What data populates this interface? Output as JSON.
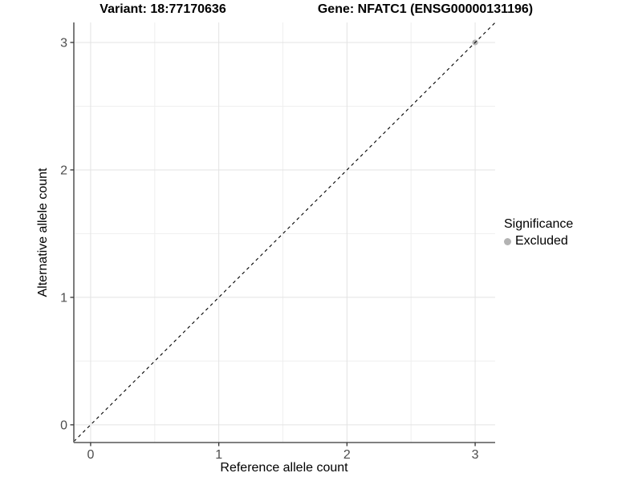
{
  "chart_data": {
    "type": "scatter",
    "titles": {
      "left": "Variant: 18:77170636",
      "right": "Gene: NFATC1 (ENSG00000131196)"
    },
    "xlabel": "Reference allele count",
    "ylabel": "Alternative allele count",
    "xlim": [
      -0.131,
      3.156
    ],
    "ylim": [
      -0.139,
      3.157
    ],
    "xticks": [
      0,
      1,
      2,
      3
    ],
    "yticks": [
      0,
      1,
      2,
      3
    ],
    "minor_ticks": [
      0.5,
      1.5,
      2.5
    ],
    "grid": true,
    "identity_line": {
      "slope": 1,
      "intercept": 0,
      "style": "dashed",
      "color": "#000000"
    },
    "series": [
      {
        "name": "Excluded",
        "color": "#b3b3b3",
        "points": [
          {
            "x": 3,
            "y": 3
          }
        ]
      }
    ],
    "legend": {
      "title": "Significance",
      "position": "right",
      "entries": [
        {
          "label": "Excluded",
          "color": "#b3b3b3"
        }
      ]
    },
    "style": {
      "background": "#ffffff",
      "grid_major_color": "#e3e3e3",
      "grid_minor_color": "#efefef",
      "axis_line_color": "#6e6e6e",
      "tick_color": "#333333",
      "tick_label_color": "#4d4d4d",
      "text_color": "#000000"
    }
  }
}
